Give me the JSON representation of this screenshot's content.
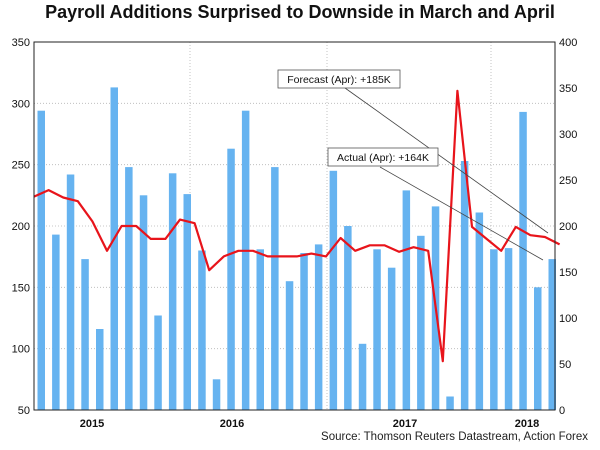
{
  "chart_data": {
    "type": "bar+line",
    "title": "Payroll Additions Surprised to Downside in March and April",
    "source": "Source: Thomson Reuters Datastream, Action Forex",
    "left_axis": {
      "min": 50,
      "max": 350,
      "ticks": [
        50,
        100,
        150,
        200,
        250,
        300,
        350
      ]
    },
    "right_axis": {
      "min": 0,
      "max": 400,
      "ticks": [
        0,
        50,
        100,
        150,
        200,
        250,
        300,
        350,
        400
      ]
    },
    "x_labels": [
      "2015",
      "2016",
      "2017",
      "2018"
    ],
    "grid": true,
    "legend": "none",
    "series": [
      {
        "type": "bar",
        "axis": "left",
        "color": "#66b3f0",
        "values": [
          294,
          193,
          242,
          173,
          116,
          313,
          248,
          225,
          127,
          243,
          226,
          180,
          75,
          263,
          294,
          181,
          248,
          155,
          178,
          185,
          245,
          200,
          104,
          181,
          166,
          229,
          192,
          216,
          61,
          253,
          211,
          181,
          182,
          293,
          150,
          173
        ]
      },
      {
        "type": "line",
        "axis": "right",
        "color": "#e8141b",
        "values": [
          232,
          239,
          231,
          227,
          205,
          173,
          200,
          200,
          186,
          186,
          207,
          203,
          152,
          167,
          173,
          173,
          167,
          167,
          167,
          170,
          167,
          187,
          173,
          179,
          179,
          172,
          177,
          173,
          53,
          347,
          199,
          186,
          173,
          199,
          190,
          188,
          180
        ]
      }
    ],
    "annotations": [
      {
        "text": "Forecast (Apr): +185K"
      },
      {
        "text": "Actual (Apr): +164K"
      }
    ]
  }
}
